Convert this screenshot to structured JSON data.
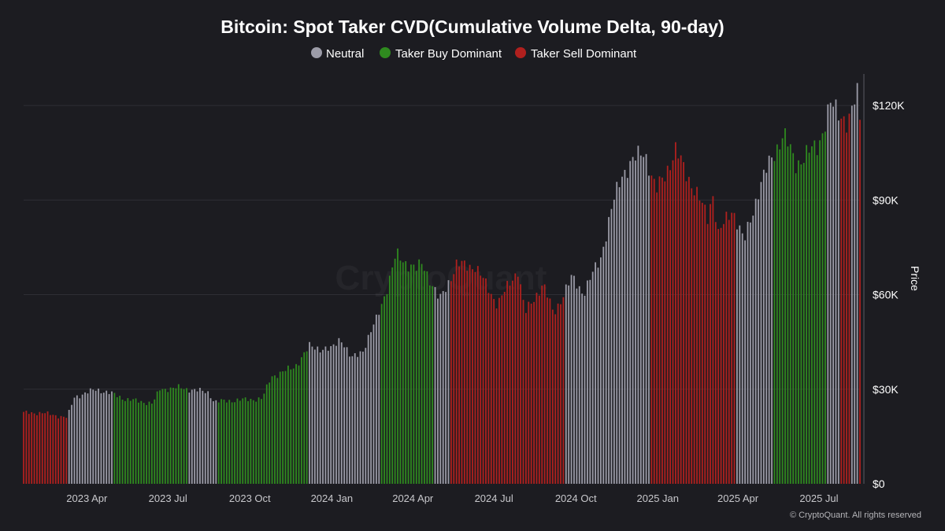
{
  "chart_data": {
    "type": "bar",
    "title": "Bitcoin: Spot Taker CVD(Cumulative Volume Delta, 90-day)",
    "legend": {
      "placement": "top-center",
      "items": [
        {
          "key": "neutral",
          "label": "Neutral",
          "color": "#9c9ca8"
        },
        {
          "key": "buy",
          "label": "Taker Buy Dominant",
          "color": "#2f8a1f"
        },
        {
          "key": "sell",
          "label": "Taker Sell Dominant",
          "color": "#b0201e"
        }
      ]
    },
    "colors": {
      "neutral": "#9c9ca8",
      "buy": "#2f8a1f",
      "sell": "#b0201e",
      "background": "#1c1c21",
      "grid": "#2e2e35",
      "axis": "#5a5a62"
    },
    "ylabel": "Price",
    "ylim": [
      0,
      130000
    ],
    "yticks": [
      {
        "value": 0,
        "label": "$0"
      },
      {
        "value": 30000,
        "label": "$30K"
      },
      {
        "value": 60000,
        "label": "$60K"
      },
      {
        "value": 90000,
        "label": "$90K"
      },
      {
        "value": 120000,
        "label": "$120K"
      }
    ],
    "x_start": "2023-01-20",
    "x_end": "2025-08-16",
    "xticks": [
      {
        "date": "2023-04-01",
        "label": "2023 Apr"
      },
      {
        "date": "2023-07-01",
        "label": "2023 Jul"
      },
      {
        "date": "2023-10-01",
        "label": "2023 Oct"
      },
      {
        "date": "2024-01-01",
        "label": "2024 Jan"
      },
      {
        "date": "2024-04-01",
        "label": "2024 Apr"
      },
      {
        "date": "2024-07-01",
        "label": "2024 Jul"
      },
      {
        "date": "2024-10-01",
        "label": "2024 Oct"
      },
      {
        "date": "2025-01-01",
        "label": "2025 Jan"
      },
      {
        "date": "2025-04-01",
        "label": "2025 Apr"
      },
      {
        "date": "2025-07-01",
        "label": "2025 Jul"
      }
    ],
    "grid": true,
    "bar_interval_days": 3,
    "price_keypoints": [
      [
        "2023-01-20",
        22500
      ],
      [
        "2023-02-10",
        22500
      ],
      [
        "2023-03-10",
        21000
      ],
      [
        "2023-03-18",
        27500
      ],
      [
        "2023-04-12",
        30000
      ],
      [
        "2023-04-30",
        28500
      ],
      [
        "2023-05-15",
        26800
      ],
      [
        "2023-06-14",
        25500
      ],
      [
        "2023-06-22",
        30000
      ],
      [
        "2023-07-14",
        30500
      ],
      [
        "2023-08-16",
        29000
      ],
      [
        "2023-08-22",
        26000
      ],
      [
        "2023-09-15",
        26500
      ],
      [
        "2023-10-15",
        27000
      ],
      [
        "2023-10-25",
        34000
      ],
      [
        "2023-11-20",
        37000
      ],
      [
        "2023-12-07",
        43500
      ],
      [
        "2023-12-31",
        42500
      ],
      [
        "2024-01-11",
        46500
      ],
      [
        "2024-01-23",
        39500
      ],
      [
        "2024-02-05",
        42500
      ],
      [
        "2024-02-20",
        52000
      ],
      [
        "2024-03-05",
        64000
      ],
      [
        "2024-03-13",
        72500
      ],
      [
        "2024-04-05",
        68000
      ],
      [
        "2024-04-12",
        70000
      ],
      [
        "2024-05-01",
        58000
      ],
      [
        "2024-05-20",
        69500
      ],
      [
        "2024-06-10",
        69000
      ],
      [
        "2024-07-05",
        57000
      ],
      [
        "2024-07-28",
        68000
      ],
      [
        "2024-08-05",
        54000
      ],
      [
        "2024-08-25",
        63500
      ],
      [
        "2024-09-06",
        54000
      ],
      [
        "2024-09-27",
        65500
      ],
      [
        "2024-10-10",
        60500
      ],
      [
        "2024-10-29",
        72000
      ],
      [
        "2024-11-12",
        89000
      ],
      [
        "2024-11-22",
        98500
      ],
      [
        "2024-12-17",
        106000
      ],
      [
        "2024-12-30",
        92500
      ],
      [
        "2025-01-21",
        105500
      ],
      [
        "2025-02-05",
        97000
      ],
      [
        "2025-02-27",
        84000
      ],
      [
        "2025-03-03",
        94000
      ],
      [
        "2025-03-10",
        79000
      ],
      [
        "2025-03-26",
        87500
      ],
      [
        "2025-04-08",
        76500
      ],
      [
        "2025-04-25",
        94000
      ],
      [
        "2025-05-10",
        104000
      ],
      [
        "2025-05-22",
        111000
      ],
      [
        "2025-06-05",
        101500
      ],
      [
        "2025-06-30",
        107500
      ],
      [
        "2025-07-14",
        120000
      ],
      [
        "2025-07-31",
        116000
      ],
      [
        "2025-08-02",
        113500
      ],
      [
        "2025-08-13",
        123500
      ],
      [
        "2025-08-16",
        117000
      ]
    ],
    "regimes": [
      {
        "start": "2023-01-20",
        "end": "2023-03-10",
        "type": "sell"
      },
      {
        "start": "2023-03-10",
        "end": "2023-05-01",
        "type": "neutral"
      },
      {
        "start": "2023-05-01",
        "end": "2023-06-20",
        "type": "buy"
      },
      {
        "start": "2023-06-20",
        "end": "2023-07-25",
        "type": "buy"
      },
      {
        "start": "2023-07-25",
        "end": "2023-08-26",
        "type": "neutral"
      },
      {
        "start": "2023-08-26",
        "end": "2023-12-05",
        "type": "buy"
      },
      {
        "start": "2023-12-05",
        "end": "2024-02-25",
        "type": "neutral"
      },
      {
        "start": "2024-02-25",
        "end": "2024-04-25",
        "type": "buy"
      },
      {
        "start": "2024-04-25",
        "end": "2024-05-12",
        "type": "neutral"
      },
      {
        "start": "2024-05-12",
        "end": "2024-09-20",
        "type": "sell"
      },
      {
        "start": "2024-09-20",
        "end": "2024-12-25",
        "type": "neutral"
      },
      {
        "start": "2024-12-25",
        "end": "2025-03-30",
        "type": "sell"
      },
      {
        "start": "2025-03-30",
        "end": "2025-05-10",
        "type": "neutral"
      },
      {
        "start": "2025-05-10",
        "end": "2025-07-10",
        "type": "buy"
      },
      {
        "start": "2025-07-10",
        "end": "2025-07-26",
        "type": "neutral"
      },
      {
        "start": "2025-07-26",
        "end": "2025-08-05",
        "type": "sell"
      },
      {
        "start": "2025-08-05",
        "end": "2025-08-14",
        "type": "neutral"
      },
      {
        "start": "2025-08-14",
        "end": "2025-08-17",
        "type": "sell"
      }
    ],
    "watermark": "CryptoQuant",
    "copyright": "© CryptoQuant. All rights reserved"
  }
}
